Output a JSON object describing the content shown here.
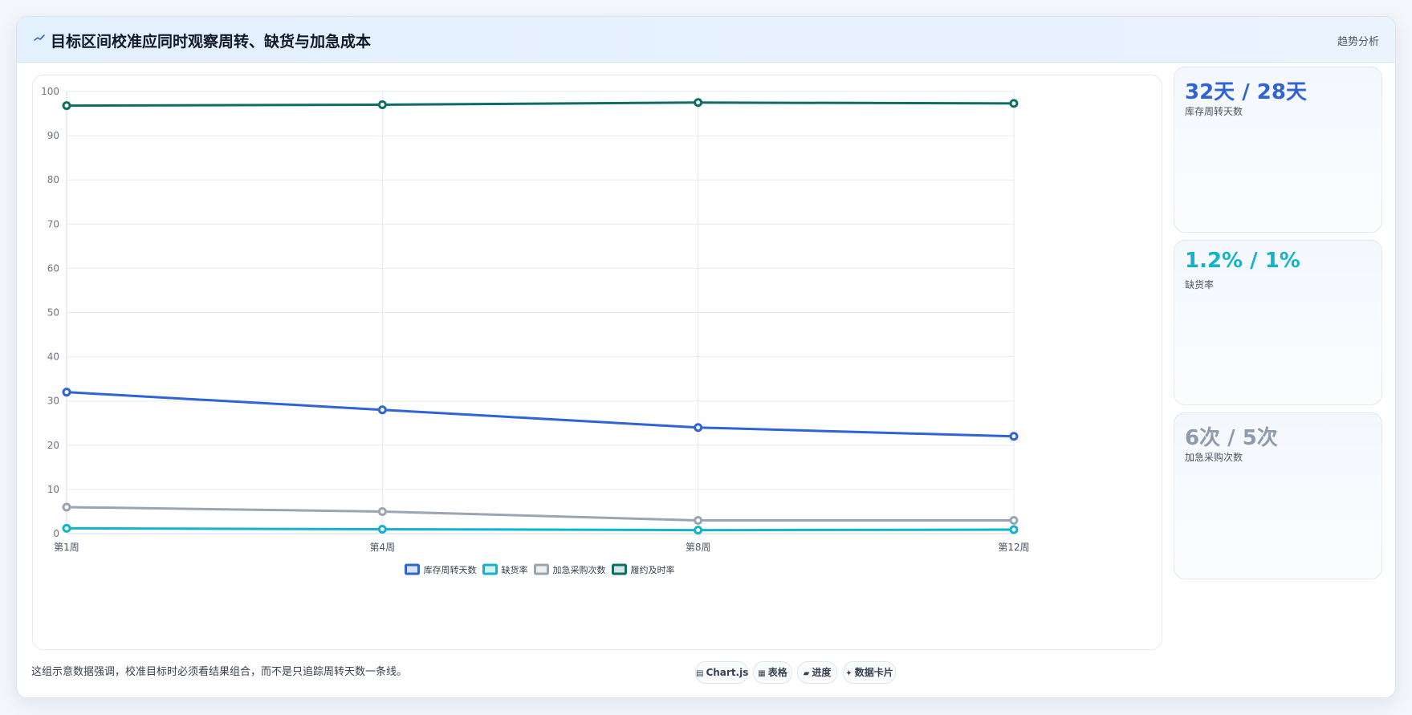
{
  "header": {
    "title": "目标区间校准应同时观察周转、缺货与加急成本",
    "tag": "趋势分析"
  },
  "chart_data": {
    "type": "line",
    "categories": [
      "第1周",
      "第4周",
      "第8周",
      "第12周"
    ],
    "ylim": [
      0,
      100
    ],
    "yticks": [
      0,
      10,
      20,
      30,
      40,
      50,
      60,
      70,
      80,
      90,
      100
    ],
    "grid": true,
    "legend_position": "bottom",
    "series": [
      {
        "name": "库存周转天数",
        "values": [
          32,
          28,
          24,
          22
        ],
        "color": "#2f63d6"
      },
      {
        "name": "缺货率",
        "values": [
          1.2,
          1,
          0.8,
          0.9
        ],
        "color": "#12b4cc"
      },
      {
        "name": "加急采购次数",
        "values": [
          6,
          5,
          3,
          3
        ],
        "color": "#9aa5b4"
      },
      {
        "name": "履约及时率",
        "values": [
          96.8,
          97,
          97.5,
          97.3
        ],
        "color": "#0f6e63"
      }
    ]
  },
  "kpis": [
    {
      "value": "32天 / 28天",
      "label": "库存周转天数",
      "color": "#2f63d6"
    },
    {
      "value": "1.2% / 1%",
      "label": "缺货率",
      "color": "#12b4cc"
    },
    {
      "value": "6次 / 5次",
      "label": "加急采购次数",
      "color": "#8e9bad"
    }
  ],
  "footer": {
    "note": "这组示意数据强调，校准目标时必须看结果组合，而不是只追踪周转天数一条线。",
    "pills": [
      {
        "icon": "▤",
        "label": "Chart.js"
      },
      {
        "icon": "▦",
        "label": "表格"
      },
      {
        "icon": "▰",
        "label": "进度"
      },
      {
        "icon": "✦",
        "label": "数据卡片"
      }
    ]
  }
}
